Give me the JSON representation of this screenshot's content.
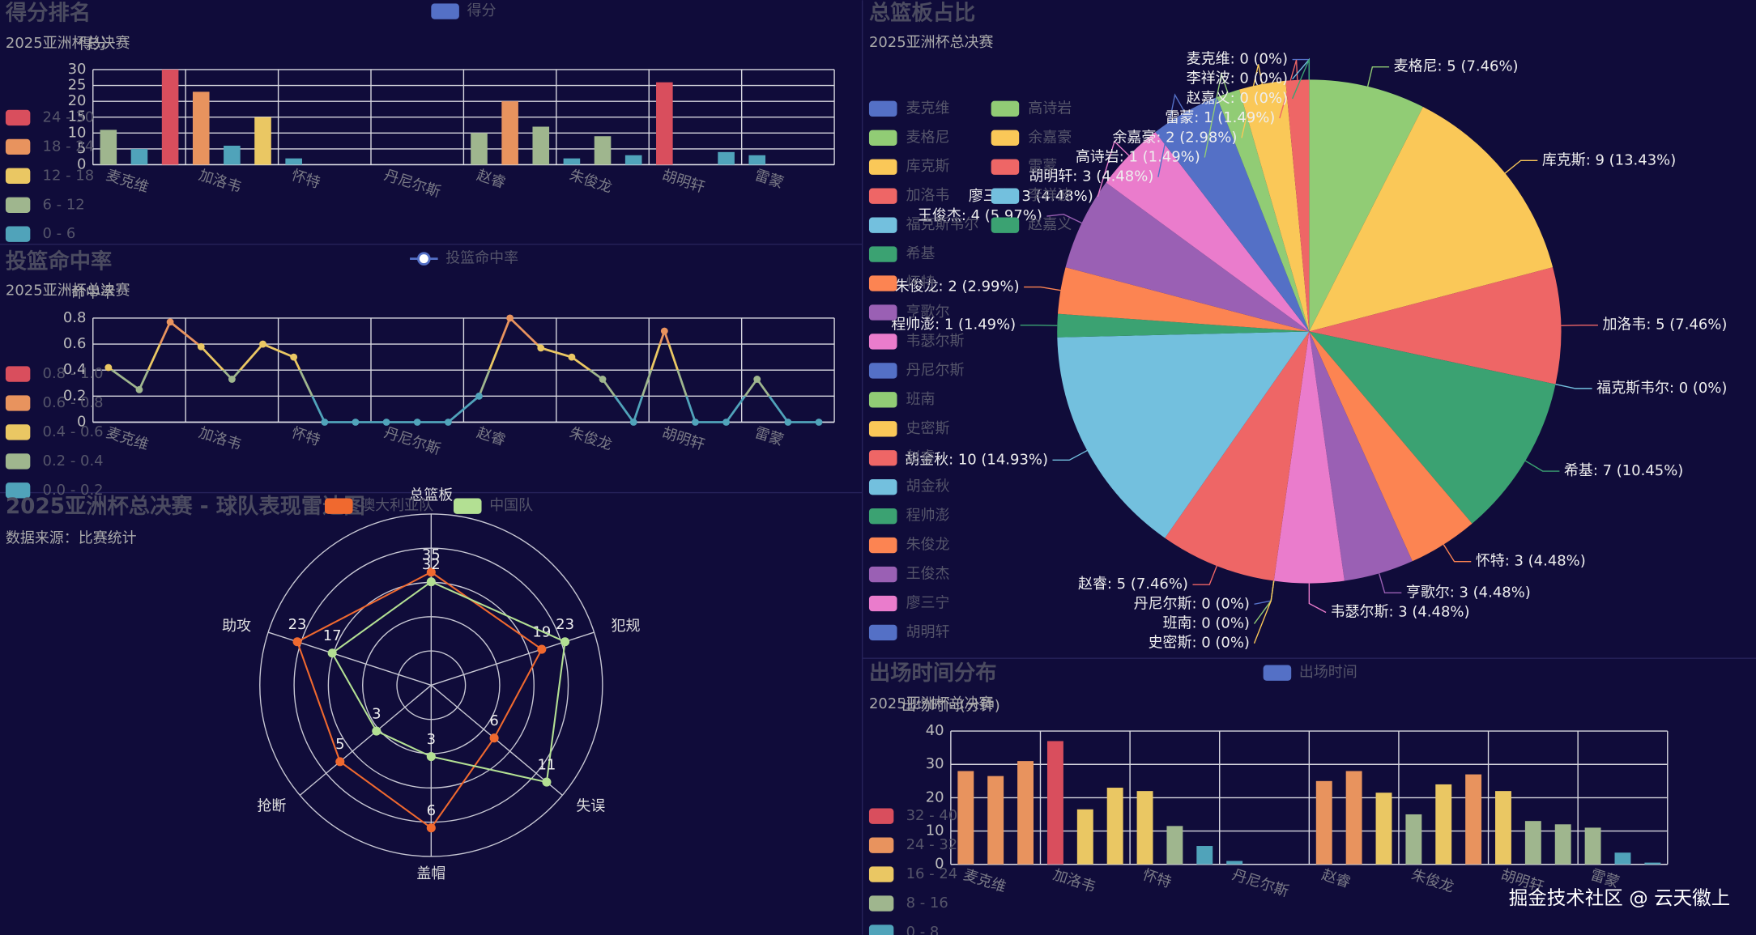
{
  "chart_data": [
    {
      "type": "bar",
      "title": "得分排名",
      "subtitle": "2025亚洲杯总决赛",
      "y_axis_label": "得分",
      "categories": [
        "麦克维",
        null,
        null,
        "加洛韦",
        null,
        null,
        "怀特",
        null,
        null,
        "丹尼尔斯",
        null,
        null,
        "赵睿",
        null,
        null,
        "朱俊龙",
        null,
        null,
        "胡明轩",
        null,
        null,
        "雷蒙",
        null,
        null
      ],
      "series": [
        {
          "name": "得分",
          "color": "#5470c6",
          "values": [
            11,
            5,
            30,
            23,
            6,
            15,
            2,
            0,
            0,
            0,
            0,
            0,
            10,
            20,
            12,
            2,
            9,
            3,
            26,
            0,
            4,
            3,
            0,
            0
          ]
        }
      ],
      "ylim": [
        0,
        30
      ],
      "yticks": [
        0,
        5,
        10,
        15,
        20,
        25,
        30
      ],
      "grid": true,
      "visual_map": [
        {
          "label": "24 - 30",
          "min": 24,
          "max": 30,
          "color": "#d94e5d"
        },
        {
          "label": "18 - 24",
          "min": 18,
          "max": 24,
          "color": "#e8935e"
        },
        {
          "label": "12 - 18",
          "min": 12,
          "max": 18,
          "color": "#eac763"
        },
        {
          "label": "6 - 12",
          "min": 6,
          "max": 12,
          "color": "#9fb68e"
        },
        {
          "label": "0 - 6",
          "min": 0,
          "max": 6,
          "color": "#50a3ba"
        }
      ]
    },
    {
      "type": "line",
      "title": "投篮命中率",
      "subtitle": "2025亚洲杯总决赛",
      "y_axis_label": "命中率",
      "categories": [
        "麦克维",
        null,
        null,
        "加洛韦",
        null,
        null,
        "怀特",
        null,
        null,
        "丹尼尔斯",
        null,
        null,
        "赵睿",
        null,
        null,
        "朱俊龙",
        null,
        null,
        "胡明轩",
        null,
        null,
        "雷蒙",
        null,
        null
      ],
      "series": [
        {
          "name": "投篮命中率",
          "color": "#5470c6",
          "values": [
            0.42,
            0.25,
            0.77,
            0.58,
            0.33,
            0.6,
            0.5,
            0,
            0,
            0,
            0,
            0,
            0.2,
            0.8,
            0.57,
            0.5,
            0.33,
            0,
            0.7,
            0,
            0,
            0.33,
            0,
            0
          ]
        }
      ],
      "ylim": [
        0,
        0.8
      ],
      "yticks": [
        0,
        0.2,
        0.4,
        0.6,
        0.8
      ],
      "grid": true,
      "visual_map": [
        {
          "label": "0.8 - 1.0",
          "min": 0.8,
          "max": 1.0,
          "color": "#d94e5d"
        },
        {
          "label": "0.6 - 0.8",
          "min": 0.6,
          "max": 0.8,
          "color": "#e8935e"
        },
        {
          "label": "0.4 - 0.6",
          "min": 0.4,
          "max": 0.6,
          "color": "#eac763"
        },
        {
          "label": "0.2 - 0.4",
          "min": 0.2,
          "max": 0.4,
          "color": "#9fb68e"
        },
        {
          "label": "0.0 - 0.2",
          "min": 0.0,
          "max": 0.2,
          "color": "#50a3ba"
        }
      ]
    },
    {
      "type": "radar",
      "title": "2025亚洲杯总决赛 - 球队表现雷达图",
      "subtitle": "数据来源：比赛统计",
      "indicators": [
        {
          "name": "总篮板",
          "max": 53
        },
        {
          "name": "犯规",
          "max": 28
        },
        {
          "name": "失误",
          "max": 12.5
        },
        {
          "name": "盖帽",
          "max": 7.2
        },
        {
          "name": "抢断",
          "max": 7.2
        },
        {
          "name": "助攻",
          "max": 28
        }
      ],
      "series": [
        {
          "name": "澳大利亚队",
          "color": "#f0692f",
          "values": [
            35,
            19,
            6,
            6,
            5,
            23
          ]
        },
        {
          "name": "中国队",
          "color": "#b3e093",
          "values": [
            32,
            23,
            11,
            3,
            3,
            17
          ]
        }
      ]
    },
    {
      "type": "pie",
      "title": "总篮板占比",
      "subtitle": "2025亚洲杯总决赛",
      "categories": [
        "麦克维",
        "麦格尼",
        "库克斯",
        "加洛韦",
        "福克斯韦尔",
        "希基",
        "怀特",
        "亨歌尔",
        "韦瑟尔斯",
        "丹尼尔斯",
        "班南",
        "史密斯",
        "赵睿",
        "胡金秋",
        "程帅澎",
        "朱俊龙",
        "王俊杰",
        "廖三宁",
        "胡明轩",
        "高诗岩",
        "余嘉豪",
        "雷蒙",
        "李祥波",
        "赵嘉义"
      ],
      "values": [
        0,
        5,
        9,
        5,
        0,
        7,
        3,
        3,
        3,
        0,
        0,
        0,
        5,
        10,
        1,
        2,
        4,
        3,
        3,
        1,
        2,
        1,
        0,
        0
      ],
      "value_labels": [
        "麦克维: 0 (0%)",
        "麦格尼: 5 (7.46%)",
        "库克斯: 9 (13.43%)",
        "加洛韦: 5 (7.46%)",
        "福克斯韦尔: 0 (0%)",
        "希基: 7 (10.45%)",
        "怀特: 3 (4.48%)",
        "亨歌尔: 3 (4.48%)",
        "韦瑟尔斯: 3 (4.48%)",
        "丹尼尔斯: 0 (0%)",
        "班南: 0 (0%)",
        "史密斯: 0 (0%)",
        "赵睿: 5 (7.46%)",
        "胡金秋: 10 (14.93%)",
        "程帅澎: 1 (1.49%)",
        "朱俊龙: 2 (2.99%)",
        "王俊杰: 4 (5.97%)",
        "廖三宁: 3 (4.48%)",
        "胡明轩: 3 (4.48%)",
        "高诗岩: 1 (1.49%)",
        "余嘉豪: 2 (2.98%)",
        "雷蒙: 1 (1.49%)",
        "李祥波: 0 (0%)",
        "赵嘉义: 0 (0%)"
      ],
      "palette": [
        "#5470c6",
        "#91cc75",
        "#fac858",
        "#ee6666",
        "#73c0de",
        "#3ba272",
        "#fc8452",
        "#9a60b4",
        "#ea7ccc"
      ]
    },
    {
      "type": "bar",
      "title": "出场时间分布",
      "subtitle": "2025亚洲杯总决赛",
      "y_axis_label": "出场时间(分钟)",
      "categories": [
        "麦克维",
        null,
        null,
        "加洛韦",
        null,
        null,
        "怀特",
        null,
        null,
        "丹尼尔斯",
        null,
        null,
        "赵睿",
        null,
        null,
        "朱俊龙",
        null,
        null,
        "胡明轩",
        null,
        null,
        "雷蒙",
        null,
        null
      ],
      "series": [
        {
          "name": "出场时间",
          "color": "#5470c6",
          "values": [
            28,
            26.5,
            31,
            37,
            16.5,
            23,
            22,
            11.5,
            5.5,
            1,
            0,
            0,
            25,
            28,
            21.5,
            15,
            24,
            27,
            22,
            13,
            12,
            11,
            3.5,
            0.5
          ]
        }
      ],
      "ylim": [
        0,
        40
      ],
      "yticks": [
        0,
        10,
        20,
        30,
        40
      ],
      "grid": true,
      "visual_map": [
        {
          "label": "32 - 40",
          "min": 32,
          "max": 40,
          "color": "#d94e5d"
        },
        {
          "label": "24 - 32",
          "min": 24,
          "max": 32,
          "color": "#e8935e"
        },
        {
          "label": "16 - 24",
          "min": 16,
          "max": 24,
          "color": "#eac763"
        },
        {
          "label": "8 - 16",
          "min": 8,
          "max": 16,
          "color": "#9fb68e"
        },
        {
          "label": "0 - 8",
          "min": 0,
          "max": 8,
          "color": "#50a3ba"
        }
      ]
    }
  ],
  "watermark": "掘金技术社区 @ 云天徽上"
}
